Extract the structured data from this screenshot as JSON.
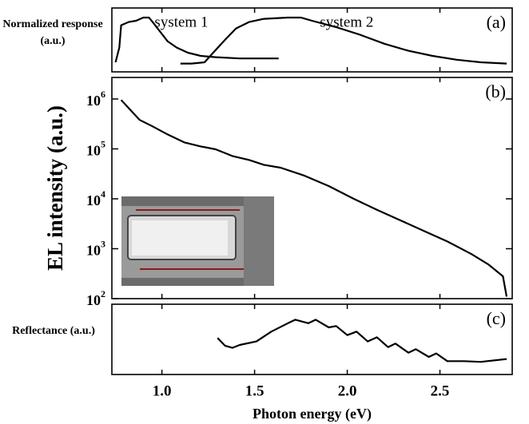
{
  "chart_data": [
    {
      "type": "line",
      "panel_label": "(a)",
      "ylabel": "Normalized response (a.u.)",
      "xlim": [
        0.73,
        2.89
      ],
      "ylim": [
        0,
        1
      ],
      "series": [
        {
          "name": "system 1",
          "color": "#000000",
          "x": [
            0.75,
            0.77,
            0.78,
            0.82,
            0.86,
            0.9,
            0.93,
            0.95,
            0.99,
            1.03,
            1.08,
            1.14,
            1.21,
            1.29,
            1.42,
            1.63
          ],
          "values": [
            0.15,
            0.38,
            0.73,
            0.78,
            0.8,
            0.85,
            0.85,
            0.78,
            0.63,
            0.48,
            0.38,
            0.3,
            0.25,
            0.23,
            0.21,
            0.21
          ]
        },
        {
          "name": "system 2",
          "color": "#000000",
          "x": [
            1.1,
            1.16,
            1.23,
            1.27,
            1.34,
            1.4,
            1.47,
            1.55,
            1.68,
            1.75,
            1.81,
            1.94,
            2.07,
            2.2,
            2.33,
            2.46,
            2.59,
            2.72,
            2.86
          ],
          "values": [
            0.13,
            0.13,
            0.15,
            0.28,
            0.5,
            0.68,
            0.78,
            0.83,
            0.85,
            0.85,
            0.8,
            0.7,
            0.58,
            0.44,
            0.33,
            0.25,
            0.19,
            0.15,
            0.13
          ]
        }
      ]
    },
    {
      "type": "line",
      "panel_label": "(b)",
      "ylabel": "EL intensity (a.u.)",
      "log_y": true,
      "color": "#000000",
      "xlim": [
        0.73,
        2.89
      ],
      "ylim": [
        100,
        2700000
      ],
      "yticks": [
        {
          "value": 100,
          "label": "10",
          "exponent": "2"
        },
        {
          "value": 1000,
          "label": "10",
          "exponent": "3"
        },
        {
          "value": 10000,
          "label": "10",
          "exponent": "4"
        },
        {
          "value": 100000,
          "label": "10",
          "exponent": "5"
        },
        {
          "value": 1000000,
          "label": "10",
          "exponent": "6"
        }
      ],
      "x": [
        0.78,
        0.82,
        0.88,
        0.95,
        1.03,
        1.12,
        1.21,
        1.29,
        1.38,
        1.47,
        1.55,
        1.64,
        1.77,
        1.9,
        2.03,
        2.16,
        2.28,
        2.41,
        2.54,
        2.67,
        2.76,
        2.84,
        2.86
      ],
      "values": [
        955000,
        661000,
        380000,
        282000,
        195000,
        135000,
        112000,
        98000,
        72000,
        60000,
        48000,
        42000,
        29000,
        18000,
        10200,
        6000,
        3800,
        2300,
        1400,
        780,
        490,
        280,
        110
      ]
    },
    {
      "type": "line",
      "panel_label": "(c)",
      "ylabel": "Reflectance (a.u.)",
      "xlabel": "Photon energy (eV)",
      "color": "#000000",
      "xlim": [
        0.73,
        2.89
      ],
      "ylim": [
        0,
        1
      ],
      "xticks": [
        {
          "value": 1,
          "label": "1.0"
        },
        1.5,
        {
          "value": 2,
          "label": "2.0"
        },
        2.5
      ],
      "x": [
        1.3,
        1.34,
        1.38,
        1.42,
        1.51,
        1.59,
        1.68,
        1.72,
        1.79,
        1.83,
        1.9,
        1.94,
        2.0,
        2.05,
        2.11,
        2.16,
        2.22,
        2.26,
        2.33,
        2.37,
        2.44,
        2.48,
        2.54,
        2.63,
        2.72,
        2.86
      ],
      "values": [
        0.52,
        0.41,
        0.38,
        0.42,
        0.47,
        0.61,
        0.73,
        0.78,
        0.73,
        0.78,
        0.67,
        0.69,
        0.56,
        0.61,
        0.47,
        0.53,
        0.39,
        0.44,
        0.31,
        0.36,
        0.25,
        0.3,
        0.19,
        0.19,
        0.18,
        0.22
      ]
    }
  ]
}
